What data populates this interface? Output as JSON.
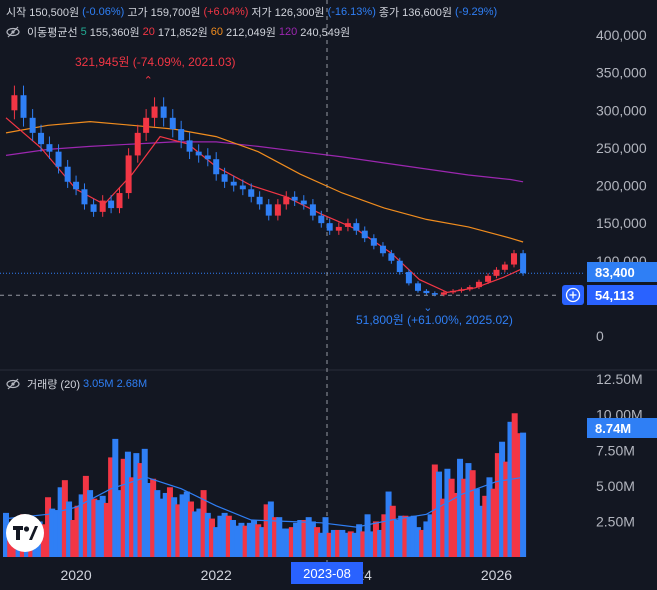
{
  "header": {
    "open_label": "시작",
    "open_value": "150,500원",
    "open_change": "(-0.06%)",
    "high_label": "고가",
    "high_value": "159,700원",
    "high_change": "(+6.04%)",
    "low_label": "저가",
    "low_value": "126,300원",
    "low_change": "(-16.13%)",
    "close_label": "종가",
    "close_value": "136,600원",
    "close_change": "(-9.29%)"
  },
  "ma_legend": {
    "title": "이동평균선",
    "items": [
      {
        "period": "5",
        "value": "155,360원",
        "color": "#22ab94"
      },
      {
        "period": "20",
        "value": "171,852원",
        "color": "#f23645"
      },
      {
        "period": "60",
        "value": "212,049원",
        "color": "#f08c1e"
      },
      {
        "period": "120",
        "value": "240,549원",
        "color": "#9c27b0"
      }
    ]
  },
  "volume_legend": {
    "title": "거래량 (20)",
    "value1": "3.05M",
    "value2": "2.68M"
  },
  "annotations": {
    "high_note": "321,945원 (-74.09%, 2021.03)",
    "low_note": "51,800원 (+61.00%, 2025.02)"
  },
  "price_labels": {
    "current": "83,400",
    "crosshair": "54,113"
  },
  "volume_label": "8.74M",
  "crosshair_date": "2023-08",
  "colors": {
    "up": "#f23645",
    "down": "#2f7ff5",
    "background": "#131722",
    "accent": "#2962ff"
  },
  "chart_data": [
    {
      "type": "candlestick",
      "title": "",
      "yaxis_ticks": [
        {
          "value": 400000,
          "label": "400,000"
        },
        {
          "value": 350000,
          "label": "350,000"
        },
        {
          "value": 300000,
          "label": "300,000"
        },
        {
          "value": 250000,
          "label": "250,000"
        },
        {
          "value": 200000,
          "label": "200,000"
        },
        {
          "value": 150000,
          "label": "150,000"
        },
        {
          "value": 100000,
          "label": "100,000"
        },
        {
          "value": 0,
          "label": "0"
        }
      ],
      "ylim": [
        0,
        420000
      ],
      "xaxis_ticks": [
        {
          "value": 2020,
          "label": "2020"
        },
        {
          "value": 2022,
          "label": "2022"
        },
        {
          "value": 2024,
          "label": "2024"
        },
        {
          "value": 2026,
          "label": "2026"
        }
      ],
      "xlim": [
        2019.0,
        2026.45
      ],
      "close_series": [
        [
          2019.0,
          300000
        ],
        [
          2019.12,
          320000
        ],
        [
          2019.25,
          290000
        ],
        [
          2019.38,
          270000
        ],
        [
          2019.5,
          255000
        ],
        [
          2019.62,
          245000
        ],
        [
          2019.75,
          225000
        ],
        [
          2019.88,
          205000
        ],
        [
          2020.0,
          195000
        ],
        [
          2020.12,
          175000
        ],
        [
          2020.25,
          165000
        ],
        [
          2020.38,
          180000
        ],
        [
          2020.5,
          170000
        ],
        [
          2020.62,
          190000
        ],
        [
          2020.75,
          240000
        ],
        [
          2020.88,
          270000
        ],
        [
          2021.0,
          290000
        ],
        [
          2021.12,
          305000
        ],
        [
          2021.25,
          290000
        ],
        [
          2021.38,
          275000
        ],
        [
          2021.5,
          260000
        ],
        [
          2021.62,
          245000
        ],
        [
          2021.75,
          240000
        ],
        [
          2021.88,
          235000
        ],
        [
          2022.0,
          215000
        ],
        [
          2022.12,
          205000
        ],
        [
          2022.25,
          200000
        ],
        [
          2022.38,
          195000
        ],
        [
          2022.5,
          185000
        ],
        [
          2022.62,
          175000
        ],
        [
          2022.75,
          160000
        ],
        [
          2022.88,
          175000
        ],
        [
          2023.0,
          185000
        ],
        [
          2023.12,
          180000
        ],
        [
          2023.25,
          175000
        ],
        [
          2023.38,
          160000
        ],
        [
          2023.5,
          150000
        ],
        [
          2023.62,
          140000
        ],
        [
          2023.75,
          145000
        ],
        [
          2023.88,
          150000
        ],
        [
          2024.0,
          140000
        ],
        [
          2024.12,
          130000
        ],
        [
          2024.25,
          120000
        ],
        [
          2024.38,
          110000
        ],
        [
          2024.5,
          100000
        ],
        [
          2024.62,
          85000
        ],
        [
          2024.75,
          70000
        ],
        [
          2024.88,
          60000
        ],
        [
          2025.0,
          57000
        ],
        [
          2025.12,
          55000
        ],
        [
          2025.25,
          58000
        ],
        [
          2025.38,
          60000
        ],
        [
          2025.5,
          62000
        ],
        [
          2025.62,
          65000
        ],
        [
          2025.75,
          72000
        ],
        [
          2025.88,
          80000
        ],
        [
          2026.0,
          88000
        ],
        [
          2026.12,
          95000
        ],
        [
          2026.25,
          110000
        ],
        [
          2026.38,
          83400
        ]
      ],
      "ma20": [
        [
          2019.0,
          290000
        ],
        [
          2019.5,
          250000
        ],
        [
          2020.0,
          195000
        ],
        [
          2020.4,
          175000
        ],
        [
          2020.8,
          215000
        ],
        [
          2021.2,
          265000
        ],
        [
          2021.6,
          255000
        ],
        [
          2022.0,
          225000
        ],
        [
          2022.5,
          200000
        ],
        [
          2023.0,
          185000
        ],
        [
          2023.5,
          162000
        ],
        [
          2024.0,
          142000
        ],
        [
          2024.5,
          110000
        ],
        [
          2024.9,
          75000
        ],
        [
          2025.3,
          58000
        ],
        [
          2025.7,
          64000
        ],
        [
          2026.1,
          78000
        ],
        [
          2026.38,
          90000
        ]
      ],
      "ma60": [
        [
          2019.0,
          270000
        ],
        [
          2019.6,
          280000
        ],
        [
          2020.2,
          285000
        ],
        [
          2020.8,
          280000
        ],
        [
          2021.4,
          275000
        ],
        [
          2022.0,
          265000
        ],
        [
          2022.6,
          245000
        ],
        [
          2023.2,
          215000
        ],
        [
          2023.8,
          190000
        ],
        [
          2024.4,
          170000
        ],
        [
          2025.0,
          155000
        ],
        [
          2025.6,
          145000
        ],
        [
          2026.2,
          130000
        ],
        [
          2026.38,
          125000
        ]
      ],
      "ma120": [
        [
          2019.0,
          240000
        ],
        [
          2019.6,
          248000
        ],
        [
          2020.2,
          252000
        ],
        [
          2020.8,
          255000
        ],
        [
          2021.4,
          258000
        ],
        [
          2022.0,
          258000
        ],
        [
          2022.6,
          252000
        ],
        [
          2023.2,
          245000
        ],
        [
          2023.8,
          238000
        ],
        [
          2024.4,
          230000
        ],
        [
          2025.0,
          222000
        ],
        [
          2025.6,
          214000
        ],
        [
          2026.2,
          208000
        ],
        [
          2026.38,
          205000
        ]
      ],
      "current_price": 83400,
      "crosshair_price": 54113,
      "high_marker": {
        "x": 2021.03,
        "y": 321945
      },
      "low_marker": {
        "x": 2025.02,
        "y": 51800
      }
    },
    {
      "type": "bar",
      "title": "거래량 (20)",
      "yaxis_ticks": [
        {
          "value": 12500000,
          "label": "12.50M"
        },
        {
          "value": 10000000,
          "label": "10.00M"
        },
        {
          "value": 7500000,
          "label": "7.50M"
        },
        {
          "value": 5000000,
          "label": "5.00M"
        },
        {
          "value": 2500000,
          "label": "2.50M"
        }
      ],
      "ylim": [
        0,
        13000000
      ],
      "x": [
        2019.0,
        2019.06,
        2019.12,
        2019.18,
        2019.24,
        2019.3,
        2019.36,
        2019.42,
        2019.48,
        2019.54,
        2019.6,
        2019.66,
        2019.72,
        2019.78,
        2019.84,
        2019.9,
        2019.96,
        2020.02,
        2020.08,
        2020.14,
        2020.2,
        2020.26,
        2020.32,
        2020.38,
        2020.44,
        2020.5,
        2020.56,
        2020.62,
        2020.68,
        2020.74,
        2020.8,
        2020.86,
        2020.92,
        2020.98,
        2021.04,
        2021.1,
        2021.16,
        2021.22,
        2021.28,
        2021.34,
        2021.4,
        2021.46,
        2021.52,
        2021.58,
        2021.64,
        2021.7,
        2021.76,
        2021.82,
        2021.88,
        2021.94,
        2022.0,
        2022.06,
        2022.12,
        2022.18,
        2022.24,
        2022.3,
        2022.36,
        2022.42,
        2022.48,
        2022.54,
        2022.6,
        2022.66,
        2022.72,
        2022.78,
        2022.84,
        2022.9,
        2022.96,
        2023.02,
        2023.08,
        2023.14,
        2023.2,
        2023.26,
        2023.32,
        2023.38,
        2023.44,
        2023.5,
        2023.56,
        2023.62,
        2023.68,
        2023.74,
        2023.8,
        2023.86,
        2023.92,
        2023.98,
        2024.04,
        2024.1,
        2024.16,
        2024.22,
        2024.28,
        2024.34,
        2024.4,
        2024.46,
        2024.52,
        2024.58,
        2024.64,
        2024.7,
        2024.76,
        2024.82,
        2024.88,
        2024.94,
        2025.0,
        2025.06,
        2025.12,
        2025.18,
        2025.24,
        2025.3,
        2025.36,
        2025.42,
        2025.48,
        2025.54,
        2025.6,
        2025.66,
        2025.72,
        2025.78,
        2025.84,
        2025.9,
        2025.96,
        2026.02,
        2026.08,
        2026.14,
        2026.2,
        2026.26,
        2026.32,
        2026.38
      ],
      "values": [
        3.1,
        2.2,
        1.8,
        2.7,
        3.0,
        2.4,
        2.9,
        1.9,
        2.5,
        2.3,
        4.2,
        3.4,
        3.3,
        4.9,
        5.4,
        3.9,
        2.6,
        3.6,
        4.4,
        5.7,
        4.7,
        4.1,
        4.0,
        4.3,
        3.8,
        7.0,
        8.3,
        4.7,
        6.9,
        7.4,
        5.6,
        7.3,
        6.6,
        7.6,
        5.2,
        5.5,
        4.7,
        4.1,
        4.5,
        4.9,
        4.2,
        3.7,
        4.4,
        4.6,
        3.9,
        3.2,
        3.4,
        4.7,
        3.1,
        2.7,
        2.1,
        2.9,
        3.1,
        2.9,
        2.6,
        2.2,
        2.4,
        2.2,
        2.4,
        2.6,
        2.3,
        2.1,
        3.7,
        3.9,
        2.8,
        2.8,
        2.0,
        2.0,
        2.1,
        2.4,
        2.6,
        2.6,
        2.8,
        2.5,
        2.1,
        1.7,
        2.8,
        1.7,
        1.9,
        1.9,
        1.9,
        1.7,
        1.8,
        1.7,
        2.3,
        1.8,
        3.0,
        1.8,
        2.5,
        1.9,
        3.0,
        4.6,
        3.6,
        2.6,
        2.9,
        2.9,
        2.8,
        2.9,
        2.1,
        1.9,
        2.5,
        3.0,
        6.5,
        6.0,
        4.1,
        6.2,
        5.5,
        4.5,
        6.9,
        5.5,
        6.6,
        6.1,
        4.8,
        3.6,
        4.3,
        5.6,
        4.8,
        7.3,
        8.1,
        6.7,
        9.5,
        10.1,
        8.7,
        8.74
      ],
      "up": [
        false,
        true,
        true,
        false,
        true,
        false,
        true,
        false,
        false,
        true,
        true,
        false,
        false,
        false,
        true,
        false,
        true,
        true,
        false,
        true,
        false,
        true,
        false,
        false,
        true,
        true,
        false,
        false,
        true,
        false,
        true,
        false,
        true,
        false,
        false,
        true,
        false,
        false,
        false,
        true,
        false,
        true,
        false,
        false,
        true,
        false,
        false,
        true,
        false,
        true,
        false,
        false,
        false,
        true,
        false,
        false,
        false,
        true,
        false,
        false,
        true,
        false,
        true,
        false,
        true,
        false,
        false,
        false,
        true,
        false,
        false,
        true,
        false,
        false,
        true,
        false,
        false,
        true,
        false,
        true,
        false,
        false,
        true,
        false,
        false,
        true,
        false,
        false,
        true,
        false,
        true,
        false,
        true,
        false,
        false,
        true,
        false,
        false,
        false,
        true,
        false,
        false,
        true,
        false,
        true,
        false,
        true,
        true,
        false,
        true,
        false,
        true,
        false,
        false,
        true,
        false,
        true,
        true,
        false,
        true,
        false,
        true,
        true,
        false
      ],
      "ma_volume": [
        [
          2019.0,
          2.7
        ],
        [
          2019.6,
          3.0
        ],
        [
          2020.0,
          3.5
        ],
        [
          2020.5,
          4.8
        ],
        [
          2021.0,
          5.6
        ],
        [
          2021.5,
          4.8
        ],
        [
          2022.0,
          3.6
        ],
        [
          2022.5,
          2.6
        ],
        [
          2023.0,
          2.5
        ],
        [
          2023.5,
          2.4
        ],
        [
          2024.0,
          2.1
        ],
        [
          2024.5,
          2.6
        ],
        [
          2025.0,
          3.0
        ],
        [
          2025.5,
          4.4
        ],
        [
          2026.0,
          5.3
        ],
        [
          2026.38,
          5.6
        ]
      ],
      "xaxis_ticks": [
        {
          "value": 2020,
          "label": "2020"
        },
        {
          "value": 2022,
          "label": "2022"
        },
        {
          "value": 2024,
          "label": "2024"
        },
        {
          "value": 2026,
          "label": "2026"
        }
      ]
    }
  ]
}
